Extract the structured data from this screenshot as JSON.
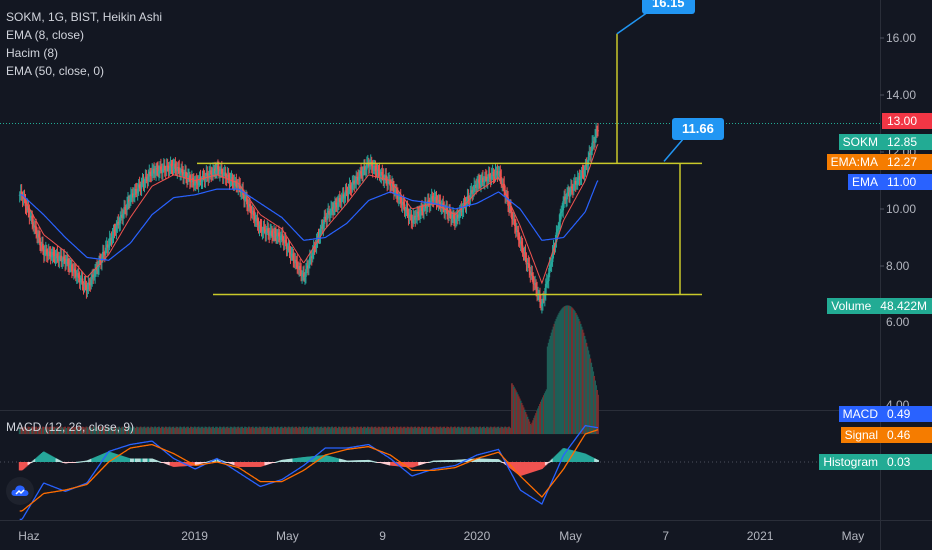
{
  "legend": {
    "title": "SOKM, 1G, BIST, Heikin Ashi",
    "ema8": "EMA (8, close)",
    "volume": "Hacim (8)",
    "ema50": "EMA (50, close, 0)",
    "macd": "MACD (12, 26, close, 9)"
  },
  "price_axis_labels": [
    "16.00",
    "14.00",
    "12.00",
    "10.00",
    "8.00"
  ],
  "volume_axis_labels": [
    "6.00",
    "4.00"
  ],
  "time_axis_labels": [
    "Haz",
    "2019",
    "May",
    "9",
    "2020",
    "May",
    "7",
    "2021",
    "May"
  ],
  "price_tags": {
    "last_price": "13.00",
    "sokm_name": "SOKM",
    "sokm_value": "12.85",
    "ema_ma_name": "EMA:MA",
    "ema_ma_value": "12.27",
    "ema_name": "EMA",
    "ema_value": "11.00",
    "volume_name": "Volume",
    "volume_value": "48.422M",
    "macd_name": "MACD",
    "macd_value": "0.49",
    "signal_name": "Signal",
    "signal_value": "0.46",
    "histogram_name": "Histogram",
    "histogram_value": "0.03"
  },
  "callouts": {
    "high": "16.15",
    "mid": "11.66"
  },
  "colors": {
    "background": "#131722",
    "up": "#26a69a",
    "down": "#ef5350",
    "ema_fast": "#2962ff",
    "signal": "#ff6d00",
    "lines": "#c9c92a",
    "accent": "#2196f3",
    "price_tag": "#f23645",
    "label_teal": "#22ab94",
    "label_orange": "#f57c00"
  },
  "chart_data": [
    {
      "type": "candlestick",
      "title": "SOKM, 1G, BIST, Heikin Ashi",
      "ylim": [
        5.6,
        17.3
      ],
      "x_range": [
        "2018-05-12",
        "2021-05-31"
      ],
      "annotations": {
        "upper_horizontal": 11.6,
        "lower_horizontal": 7.0,
        "price_target_label": 16.15,
        "breakout_label": 11.66,
        "last_price_line": 13.0
      },
      "series": [
        {
          "name": "SOKM",
          "x": [
            "2018-05-23",
            "2018-06-20",
            "2018-07-18",
            "2018-08-15",
            "2018-09-12",
            "2018-10-10",
            "2018-11-07",
            "2018-12-05",
            "2019-01-02",
            "2019-01-30",
            "2019-02-27",
            "2019-03-27",
            "2019-04-24",
            "2019-05-22",
            "2019-06-19",
            "2019-07-17",
            "2019-08-14",
            "2019-09-11",
            "2019-10-09",
            "2019-11-06",
            "2019-12-04",
            "2020-01-01",
            "2020-01-29",
            "2020-02-26",
            "2020-03-25",
            "2020-04-22",
            "2020-05-20",
            "2020-06-05"
          ],
          "values": [
            10.5,
            8.5,
            8.2,
            7.2,
            8.8,
            10.4,
            11.3,
            11.5,
            10.9,
            11.4,
            10.8,
            9.3,
            9.0,
            7.6,
            9.7,
            10.6,
            11.6,
            10.9,
            9.6,
            10.4,
            9.6,
            10.9,
            11.3,
            8.8,
            6.6,
            10.3,
            11.4,
            12.85
          ]
        },
        {
          "name": "EMA:MA",
          "values": [
            10.5,
            9.1,
            8.5,
            7.6,
            8.4,
            9.7,
            10.8,
            11.2,
            11.0,
            11.2,
            10.9,
            9.8,
            9.3,
            8.1,
            9.3,
            10.2,
            11.2,
            11.0,
            10.0,
            10.2,
            9.8,
            10.6,
            11.1,
            9.4,
            7.4,
            9.6,
            11.0,
            12.27
          ]
        },
        {
          "name": "EMA",
          "values": [
            10.5,
            9.8,
            9.0,
            8.3,
            8.2,
            8.8,
            9.8,
            10.4,
            10.5,
            10.7,
            10.7,
            10.2,
            9.7,
            8.9,
            9.0,
            9.5,
            10.3,
            10.6,
            10.3,
            10.2,
            10.0,
            10.2,
            10.6,
            10.0,
            8.9,
            9.0,
            9.9,
            11.0
          ]
        }
      ]
    },
    {
      "type": "bar",
      "title": "Hacim (8)",
      "ylim": [
        3.3,
        6.5
      ],
      "last_value": "48.422M"
    },
    {
      "type": "line",
      "title": "MACD (12, 26, close, 9)",
      "ylim": [
        -0.9,
        0.55
      ],
      "series": [
        {
          "name": "MACD",
          "values": [
            -0.82,
            -0.3,
            -0.42,
            -0.3,
            0.15,
            0.25,
            0.3,
            0.05,
            -0.1,
            0.05,
            -0.15,
            -0.35,
            -0.25,
            -0.05,
            0.2,
            0.2,
            0.25,
            0.05,
            -0.2,
            -0.1,
            -0.05,
            0.1,
            0.18,
            -0.4,
            -0.6,
            0.1,
            0.52,
            0.49
          ]
        },
        {
          "name": "Signal",
          "values": [
            -0.7,
            -0.45,
            -0.4,
            -0.32,
            0.0,
            0.2,
            0.25,
            0.12,
            -0.05,
            0.0,
            -0.08,
            -0.28,
            -0.28,
            -0.12,
            0.1,
            0.18,
            0.22,
            0.1,
            -0.12,
            -0.12,
            -0.08,
            0.05,
            0.14,
            -0.2,
            -0.5,
            -0.1,
            0.4,
            0.46
          ]
        },
        {
          "name": "Histogram",
          "values": [
            -0.12,
            0.15,
            -0.02,
            0.02,
            0.15,
            0.05,
            0.05,
            -0.07,
            -0.05,
            0.05,
            -0.07,
            -0.07,
            0.03,
            0.07,
            0.1,
            0.02,
            0.03,
            -0.05,
            -0.08,
            0.02,
            0.03,
            0.05,
            0.04,
            -0.2,
            -0.1,
            0.2,
            0.12,
            0.03
          ]
        }
      ]
    }
  ]
}
